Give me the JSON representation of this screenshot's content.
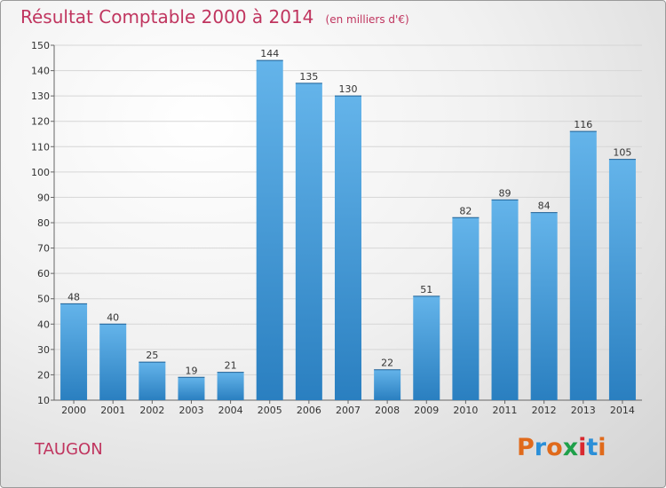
{
  "header": {
    "title": "Résultat Comptable 2000 à 2014",
    "unit_note": "(en milliers d'€)"
  },
  "footer": {
    "commune": "TAUGON",
    "logo_text": "Proxiti",
    "logo_colors": [
      "#e06a1b",
      "#2b8fd8",
      "#e06a1b",
      "#1fa04a",
      "#d8292f",
      "#2b8fd8",
      "#e06a1b"
    ]
  },
  "colors": {
    "accent_text": "#c0355f",
    "bar_light": "#64b4ea",
    "bar_dark": "#2a7fc0"
  },
  "chart_data": {
    "type": "bar",
    "categories": [
      "2000",
      "2001",
      "2002",
      "2003",
      "2004",
      "2005",
      "2006",
      "2007",
      "2008",
      "2009",
      "2010",
      "2011",
      "2012",
      "2013",
      "2014"
    ],
    "values": [
      48,
      40,
      25,
      19,
      21,
      144,
      135,
      130,
      22,
      51,
      82,
      89,
      84,
      116,
      105
    ],
    "ylim": [
      10,
      150
    ],
    "yticks": [
      10,
      20,
      30,
      40,
      50,
      60,
      70,
      80,
      90,
      100,
      110,
      120,
      130,
      140,
      150
    ],
    "grid": true,
    "data_labels": true
  }
}
